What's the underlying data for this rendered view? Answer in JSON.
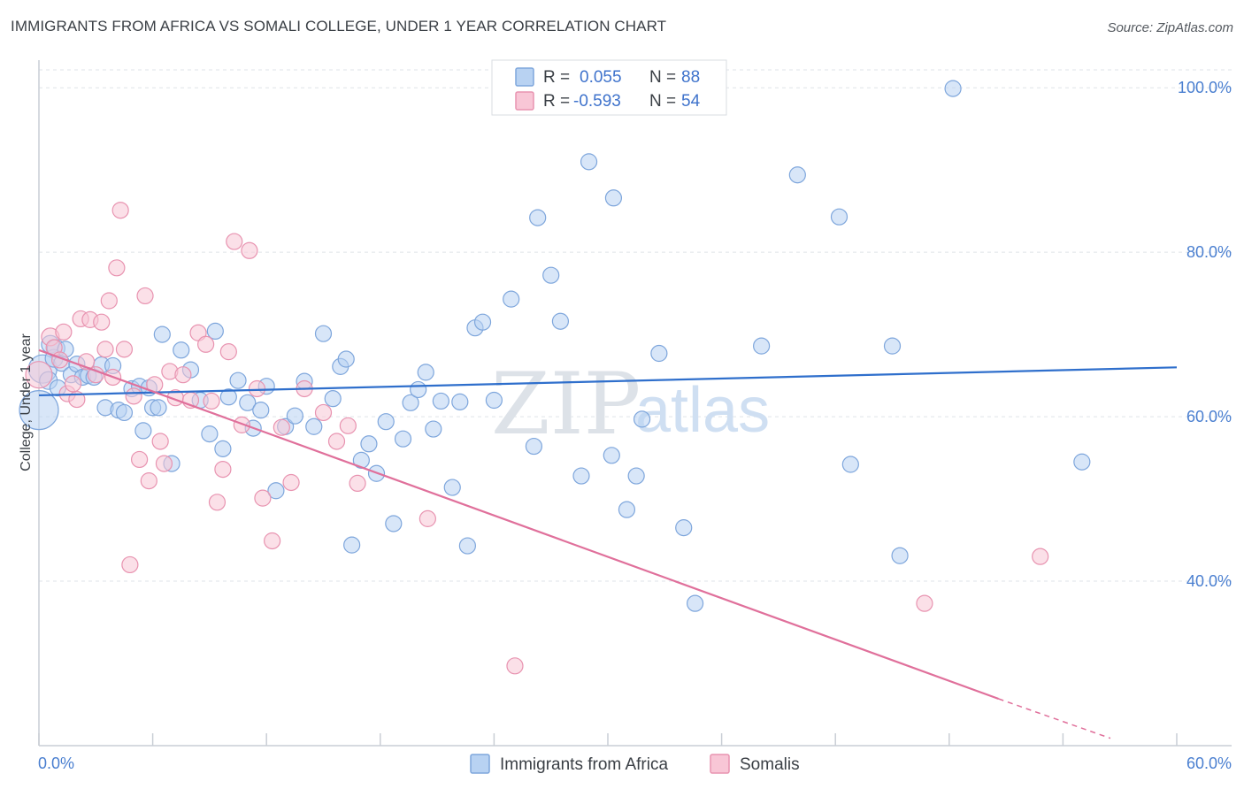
{
  "title": "IMMIGRANTS FROM AFRICA VS SOMALI COLLEGE, UNDER 1 YEAR CORRELATION CHART",
  "source": "Source: ZipAtlas.com",
  "watermark": {
    "zip": "ZIP",
    "atlas": "atlas"
  },
  "colors": {
    "blue_fill": "#b8d2f2",
    "blue_stroke": "#7ea6dc",
    "blue_line": "#2f6fcc",
    "pink_fill": "#f8c6d6",
    "pink_stroke": "#e893b0",
    "pink_line": "#e0709b",
    "grid": "#dfe3e8",
    "tick_text": "#4a7fd0"
  },
  "legend": {
    "r_label": "R =",
    "n_label": "N =",
    "rows": [
      {
        "name": "Immigrants from Africa",
        "r": "0.055",
        "n": "88"
      },
      {
        "name": "Somalis",
        "r": "-0.593",
        "n": "54"
      }
    ]
  },
  "chart_data": {
    "type": "scatter",
    "title": "IMMIGRANTS FROM AFRICA VS SOMALI COLLEGE, UNDER 1 YEAR CORRELATION CHART",
    "xlabel": "",
    "ylabel": "College, Under 1 year",
    "xlim": [
      0,
      60
    ],
    "ylim": [
      20,
      104
    ],
    "x_tick_labels": [
      "0.0%",
      "60.0%"
    ],
    "y_ticks": [
      40,
      60,
      80,
      100
    ],
    "y_tick_labels": [
      "40.0%",
      "60.0%",
      "80.0%",
      "100.0%"
    ],
    "grid": true,
    "series": [
      {
        "name": "Immigrants from Africa",
        "color": "blue",
        "trend": {
          "x": [
            0,
            60
          ],
          "y": [
            62.6,
            66.0
          ]
        },
        "points": [
          [
            0.0,
            60.8,
            22
          ],
          [
            0.2,
            65.8,
            16
          ],
          [
            0.5,
            64.4,
            10
          ],
          [
            0.6,
            68.8,
            10
          ],
          [
            0.8,
            67.1,
            10
          ],
          [
            0.9,
            68.3,
            10
          ],
          [
            1.0,
            63.5,
            9
          ],
          [
            1.2,
            66.5,
            9
          ],
          [
            1.4,
            68.2,
            9
          ],
          [
            1.7,
            65.1,
            9
          ],
          [
            2.0,
            66.4,
            9
          ],
          [
            2.3,
            64.8,
            9
          ],
          [
            2.6,
            65.0,
            9
          ],
          [
            2.9,
            64.8,
            9
          ],
          [
            3.3,
            66.3,
            9
          ],
          [
            3.5,
            61.1,
            9
          ],
          [
            3.9,
            66.2,
            9
          ],
          [
            4.2,
            60.8,
            9
          ],
          [
            4.5,
            60.5,
            9
          ],
          [
            4.9,
            63.4,
            9
          ],
          [
            5.3,
            63.7,
            9
          ],
          [
            5.5,
            58.3,
            9
          ],
          [
            6.0,
            61.1,
            9
          ],
          [
            6.3,
            61.1,
            9
          ],
          [
            5.8,
            63.5,
            9
          ],
          [
            6.5,
            70.0,
            9
          ],
          [
            7.0,
            54.3,
            9
          ],
          [
            7.5,
            68.1,
            9
          ],
          [
            8.0,
            65.7,
            9
          ],
          [
            8.5,
            62.0,
            9
          ],
          [
            9.0,
            57.9,
            9
          ],
          [
            9.3,
            70.4,
            9
          ],
          [
            9.7,
            56.1,
            9
          ],
          [
            10.0,
            62.4,
            9
          ],
          [
            10.5,
            64.4,
            9
          ],
          [
            11.0,
            61.7,
            9
          ],
          [
            11.3,
            58.6,
            9
          ],
          [
            11.7,
            60.8,
            9
          ],
          [
            12.0,
            63.7,
            9
          ],
          [
            12.5,
            51.0,
            9
          ],
          [
            13.0,
            58.8,
            9
          ],
          [
            13.5,
            60.1,
            9
          ],
          [
            14.0,
            64.3,
            9
          ],
          [
            14.5,
            58.8,
            9
          ],
          [
            15.0,
            70.1,
            9
          ],
          [
            15.5,
            62.2,
            9
          ],
          [
            15.9,
            66.1,
            9
          ],
          [
            16.2,
            67.0,
            9
          ],
          [
            16.5,
            44.4,
            9
          ],
          [
            17.0,
            54.7,
            9
          ],
          [
            17.4,
            56.7,
            9
          ],
          [
            17.8,
            53.1,
            9
          ],
          [
            18.3,
            59.4,
            9
          ],
          [
            18.7,
            47.0,
            9
          ],
          [
            19.2,
            57.3,
            9
          ],
          [
            19.6,
            61.7,
            9
          ],
          [
            20.0,
            63.3,
            9
          ],
          [
            20.4,
            65.4,
            9
          ],
          [
            20.8,
            58.5,
            9
          ],
          [
            21.2,
            61.9,
            9
          ],
          [
            21.8,
            51.4,
            9
          ],
          [
            22.2,
            61.8,
            9
          ],
          [
            22.6,
            44.3,
            9
          ],
          [
            23.0,
            70.8,
            9
          ],
          [
            23.4,
            71.5,
            9
          ],
          [
            24.0,
            62.0,
            9
          ],
          [
            24.9,
            74.3,
            9
          ],
          [
            26.1,
            56.4,
            9
          ],
          [
            26.3,
            84.2,
            9
          ],
          [
            27.0,
            77.2,
            9
          ],
          [
            27.5,
            71.6,
            9
          ],
          [
            28.6,
            52.8,
            9
          ],
          [
            29.0,
            91.0,
            9
          ],
          [
            30.2,
            55.3,
            9
          ],
          [
            30.3,
            86.6,
            9
          ],
          [
            31.0,
            48.7,
            9
          ],
          [
            31.5,
            52.8,
            9
          ],
          [
            31.8,
            59.7,
            9
          ],
          [
            32.7,
            67.7,
            9
          ],
          [
            34.0,
            46.5,
            9
          ],
          [
            34.6,
            37.3,
            9
          ],
          [
            38.1,
            68.6,
            9
          ],
          [
            40.0,
            89.4,
            9
          ],
          [
            42.2,
            84.3,
            9
          ],
          [
            42.8,
            54.2,
            9
          ],
          [
            45.0,
            68.6,
            9
          ],
          [
            45.4,
            43.1,
            9
          ],
          [
            48.2,
            99.9,
            9
          ],
          [
            55.0,
            54.5,
            9
          ]
        ]
      },
      {
        "name": "Somalis",
        "color": "pink",
        "trend": {
          "x": [
            0,
            50.6
          ],
          "y": [
            68.1,
            25.7
          ]
        },
        "trend_dashed": {
          "x": [
            50.6,
            56.5
          ],
          "y": [
            25.7,
            20.9
          ]
        },
        "points": [
          [
            0.0,
            65.1,
            15
          ],
          [
            0.6,
            69.7,
            10
          ],
          [
            0.8,
            68.4,
            9
          ],
          [
            1.1,
            66.9,
            9
          ],
          [
            1.3,
            70.3,
            9
          ],
          [
            1.5,
            62.8,
            9
          ],
          [
            1.8,
            64.0,
            9
          ],
          [
            2.0,
            62.1,
            9
          ],
          [
            2.2,
            71.9,
            9
          ],
          [
            2.5,
            66.7,
            9
          ],
          [
            2.7,
            71.8,
            9
          ],
          [
            3.0,
            65.1,
            9
          ],
          [
            3.3,
            71.5,
            9
          ],
          [
            3.5,
            68.2,
            9
          ],
          [
            3.7,
            74.1,
            9
          ],
          [
            3.9,
            64.8,
            9
          ],
          [
            4.1,
            78.1,
            9
          ],
          [
            4.3,
            85.1,
            9
          ],
          [
            4.5,
            68.2,
            9
          ],
          [
            4.8,
            42.0,
            9
          ],
          [
            5.0,
            62.5,
            9
          ],
          [
            5.3,
            54.8,
            9
          ],
          [
            5.6,
            74.7,
            9
          ],
          [
            5.8,
            52.2,
            9
          ],
          [
            6.1,
            63.9,
            9
          ],
          [
            6.4,
            57.0,
            9
          ],
          [
            6.6,
            54.3,
            9
          ],
          [
            6.9,
            65.5,
            9
          ],
          [
            7.2,
            62.3,
            9
          ],
          [
            7.6,
            65.1,
            9
          ],
          [
            8.0,
            62.0,
            9
          ],
          [
            8.4,
            70.2,
            9
          ],
          [
            8.8,
            68.8,
            9
          ],
          [
            9.1,
            61.9,
            9
          ],
          [
            9.4,
            49.6,
            9
          ],
          [
            9.7,
            53.6,
            9
          ],
          [
            10.0,
            67.9,
            9
          ],
          [
            10.3,
            81.3,
            9
          ],
          [
            10.7,
            59.0,
            9
          ],
          [
            11.1,
            80.2,
            9
          ],
          [
            11.5,
            63.4,
            9
          ],
          [
            11.8,
            50.1,
            9
          ],
          [
            12.3,
            44.9,
            9
          ],
          [
            12.8,
            58.7,
            9
          ],
          [
            13.3,
            52.0,
            9
          ],
          [
            14.0,
            63.4,
            9
          ],
          [
            15.0,
            60.5,
            9
          ],
          [
            15.7,
            57.0,
            9
          ],
          [
            16.3,
            58.9,
            9
          ],
          [
            16.8,
            51.9,
            9
          ],
          [
            20.5,
            47.6,
            9
          ],
          [
            25.1,
            29.7,
            9
          ],
          [
            46.7,
            37.3,
            9
          ],
          [
            52.8,
            43.0,
            9
          ]
        ]
      }
    ]
  }
}
